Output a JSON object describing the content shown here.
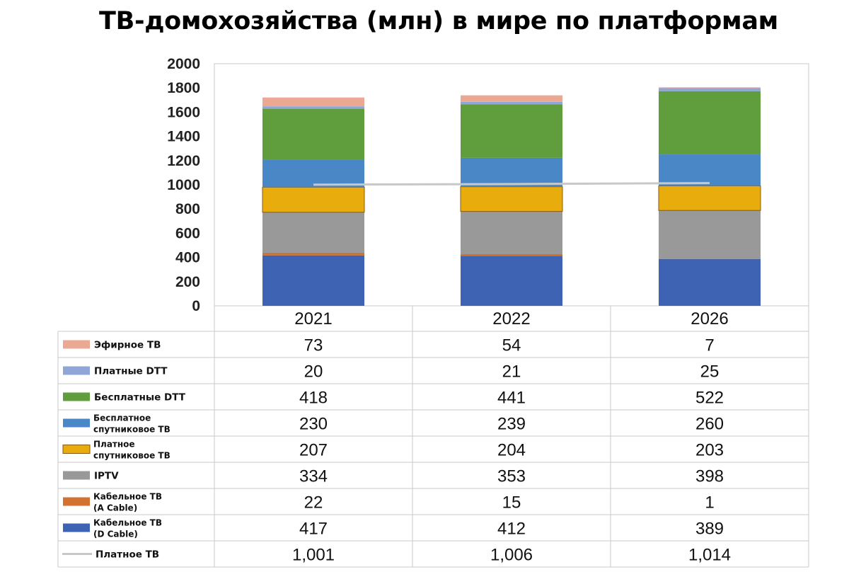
{
  "chart_data": {
    "type": "bar",
    "stacked": true,
    "title": "ТВ-домохозяйства (млн) в мире по платформам",
    "categories": [
      "2021",
      "2022",
      "2026"
    ],
    "ylim": [
      0,
      2000
    ],
    "yticks": [
      "0",
      "200",
      "400",
      "600",
      "800",
      "1000",
      "1200",
      "1400",
      "1600",
      "1800",
      "2000"
    ],
    "grid": false,
    "legend": "bottom-table",
    "series": [
      {
        "name": "Кабельное ТВ (D Cable)",
        "name_lines": [
          "Кабельное ТВ",
          "(D Cable)"
        ],
        "color": "#3d63b2",
        "values": [
          417,
          412,
          389
        ],
        "labels": [
          "417",
          "412",
          "389"
        ]
      },
      {
        "name": "Кабельное ТВ (A Cable)",
        "name_lines": [
          "Кабельное ТВ",
          "(A Cable)"
        ],
        "color": "#d2722e",
        "values": [
          22,
          15,
          1
        ],
        "labels": [
          "22",
          "15",
          "1"
        ]
      },
      {
        "name": "IPTV",
        "name_lines": [
          "IPTV"
        ],
        "color": "#999999",
        "values": [
          334,
          353,
          398
        ],
        "labels": [
          "334",
          "353",
          "398"
        ]
      },
      {
        "name": "Платное спутниковое ТВ",
        "name_lines": [
          "Платное",
          "спутниковое ТВ"
        ],
        "color": "#e8ad0c",
        "values": [
          207,
          204,
          203
        ],
        "labels": [
          "207",
          "204",
          "203"
        ]
      },
      {
        "name": "Бесплатное спутниковое ТВ",
        "name_lines": [
          "Бесплатное",
          "спутниковое ТВ"
        ],
        "color": "#4a87c6",
        "values": [
          230,
          239,
          260
        ],
        "labels": [
          "230",
          "239",
          "260"
        ]
      },
      {
        "name": "Бесплатные DTT",
        "name_lines": [
          "Бесплатные DTT"
        ],
        "color": "#5f9d3d",
        "values": [
          418,
          441,
          522
        ],
        "labels": [
          "418",
          "441",
          "522"
        ]
      },
      {
        "name": "Платные DTT",
        "name_lines": [
          "Платные DTT"
        ],
        "color": "#8fa6d6",
        "values": [
          20,
          21,
          25
        ],
        "labels": [
          "20",
          "21",
          "25"
        ]
      },
      {
        "name": "Эфирное ТВ",
        "name_lines": [
          "Эфирное ТВ"
        ],
        "color": "#eba993",
        "values": [
          73,
          54,
          7
        ],
        "labels": [
          "73",
          "54",
          "7"
        ]
      }
    ],
    "line_series": {
      "name": "Платное ТВ",
      "color": "#c8c8c8",
      "values": [
        1001,
        1006,
        1014
      ],
      "labels": [
        "1,001",
        "1,006",
        "1,014"
      ]
    },
    "table_row_order": [
      "Эфирное ТВ",
      "Платные DTT",
      "Бесплатные DTT",
      "Бесплатное спутниковое ТВ",
      "Платное спутниковое ТВ",
      "IPTV",
      "Кабельное ТВ (A Cable)",
      "Кабельное ТВ (D Cable)",
      "Платное ТВ"
    ]
  }
}
